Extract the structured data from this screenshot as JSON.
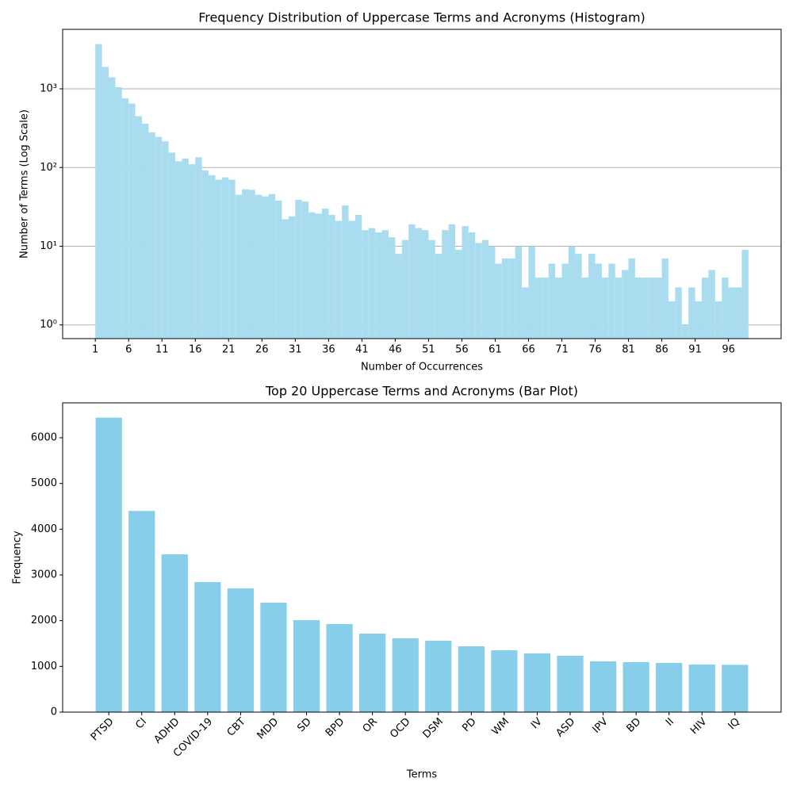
{
  "chart_data": [
    {
      "type": "histogram",
      "title": "Frequency Distribution of Uppercase Terms and Acronyms (Histogram)",
      "x_label": "Number of Occurrences",
      "y_label": "Number of Terms (Log Scale)",
      "bins": [
        1,
        2,
        3,
        4,
        5,
        6,
        7,
        8,
        9,
        10,
        11,
        12,
        13,
        14,
        15,
        16,
        17,
        18,
        19,
        20,
        21,
        22,
        23,
        24,
        25,
        26,
        27,
        28,
        29,
        30,
        31,
        32,
        33,
        34,
        35,
        36,
        37,
        38,
        39,
        40,
        41,
        42,
        43,
        44,
        45,
        46,
        47,
        48,
        49,
        50,
        51,
        52,
        53,
        54,
        55,
        56,
        57,
        58,
        59,
        60,
        61,
        62,
        63,
        64,
        65,
        66,
        67,
        68,
        69,
        70,
        71,
        72,
        73,
        74,
        75,
        76,
        77,
        78,
        79,
        80,
        81,
        82,
        83,
        84,
        85,
        86,
        87,
        88,
        89,
        90,
        91,
        92,
        93,
        94,
        95,
        96,
        97,
        98,
        99
      ],
      "values": [
        3700,
        1900,
        1400,
        1050,
        760,
        650,
        450,
        360,
        280,
        245,
        215,
        155,
        120,
        130,
        110,
        135,
        92,
        80,
        70,
        75,
        70,
        45,
        53,
        52,
        45,
        43,
        46,
        38,
        22,
        24,
        39,
        37,
        27,
        26,
        30,
        25,
        21,
        33,
        21,
        25,
        16,
        17,
        15,
        16,
        13,
        8,
        12,
        19,
        17,
        16,
        12,
        8,
        16,
        19,
        9,
        18,
        15,
        11,
        12,
        10,
        6,
        7,
        7,
        10,
        3,
        10,
        4,
        4,
        6,
        4,
        6,
        10,
        8,
        4,
        8,
        6,
        4,
        6,
        4,
        5,
        7,
        4,
        4,
        4,
        4,
        7,
        2,
        3,
        1,
        3,
        2,
        4,
        5,
        2,
        4,
        3,
        3,
        9
      ],
      "color": "#a9dcef",
      "yscale": "log",
      "grid": true,
      "xlim": [
        -3.9,
        103.9
      ],
      "xticks": [
        1,
        6,
        11,
        16,
        21,
        26,
        31,
        36,
        41,
        46,
        51,
        56,
        61,
        66,
        71,
        76,
        81,
        86,
        91,
        96
      ],
      "ylim": [
        0.67,
        5700
      ],
      "yticks": [
        {
          "value": 1,
          "label": "10⁰"
        },
        {
          "value": 10,
          "label": "10¹"
        },
        {
          "value": 100,
          "label": "10²"
        },
        {
          "value": 1000,
          "label": "10³"
        }
      ]
    },
    {
      "type": "bar",
      "title": "Top 20 Uppercase Terms and Acronyms (Bar Plot)",
      "x_label": "Terms",
      "y_label": "Frequency",
      "categories": [
        "PTSD",
        "CI",
        "ADHD",
        "COVID-19",
        "CBT",
        "MDD",
        "SD",
        "BPD",
        "OR",
        "OCD",
        "DSM",
        "PD",
        "WM",
        "IV",
        "ASD",
        "IPV",
        "BD",
        "II",
        "HIV",
        "IQ"
      ],
      "values": [
        6440,
        4400,
        3450,
        2844,
        2705,
        2393,
        2011,
        1925,
        1717,
        1613,
        1560,
        1440,
        1352,
        1283,
        1231,
        1110,
        1092,
        1075,
        1040,
        1035
      ],
      "color": "#87ceeb",
      "grid": false,
      "xlim": [
        -1.4,
        20.4
      ],
      "ylim": [
        0,
        6763
      ],
      "yticks": [
        0,
        1000,
        2000,
        3000,
        4000,
        5000,
        6000
      ]
    }
  ]
}
